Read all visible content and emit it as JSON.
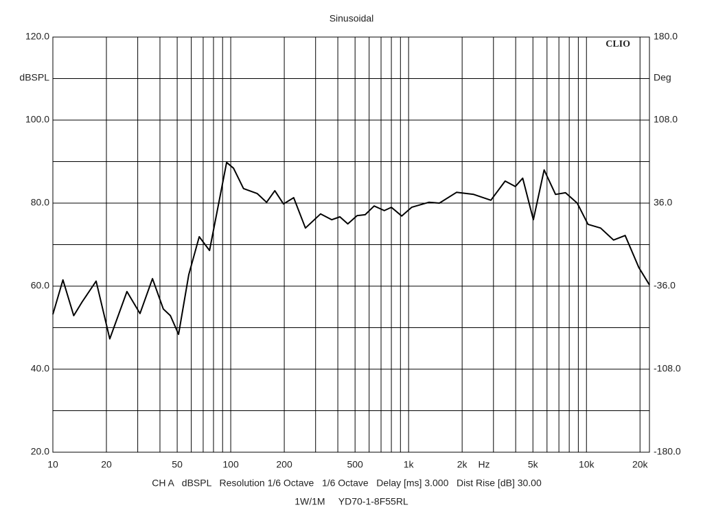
{
  "chart_data": {
    "type": "line",
    "title": "Sinusoidal",
    "ylabel": "dBSPL",
    "y2label": "Deg",
    "xunit": "Hz",
    "brand": "CLIO",
    "footer": [
      "CH A   dBSPL   Resolution 1/6 Octave   1/6 Octave   Delay [ms] 3.000   Dist Rise [dB] 30.00",
      "1W/1M     YD70-1-8F55RL"
    ],
    "xscale": "log",
    "xlim": [
      10,
      22600
    ],
    "xticks": [
      10,
      20,
      50,
      100,
      200,
      500,
      {
        "value": 1000,
        "label": "1k"
      },
      {
        "value": 2000,
        "label": "2k"
      },
      {
        "value": 5000,
        "label": "5k"
      },
      {
        "value": 10000,
        "label": "10k"
      },
      {
        "value": 20000,
        "label": "20k"
      }
    ],
    "xgrid": [
      30,
      40,
      60,
      70,
      80,
      90,
      300,
      400,
      600,
      700,
      800,
      900,
      3000,
      4000,
      6000,
      7000,
      8000,
      9000
    ],
    "ylim": [
      20,
      120
    ],
    "yticks": [
      {
        "value": 20,
        "label": "20.0"
      },
      {
        "value": 40,
        "label": "40.0"
      },
      {
        "value": 60,
        "label": "60.0"
      },
      {
        "value": 80,
        "label": "80.0"
      },
      {
        "value": 100,
        "label": "100.0"
      },
      {
        "value": 120,
        "label": "120.0"
      }
    ],
    "ygrid": [
      30,
      50,
      70,
      90,
      110
    ],
    "y2lim": [
      -180,
      180
    ],
    "y2ticks": [
      {
        "value": 180,
        "label": "180.0"
      },
      {
        "value": 108,
        "label": "108.0"
      },
      {
        "value": 36,
        "label": "36.0"
      },
      {
        "value": -36,
        "label": "-36.0"
      },
      {
        "value": -108,
        "label": "-108.0"
      },
      {
        "value": -180,
        "label": "-180.0"
      }
    ],
    "grid": true,
    "color": "#000000",
    "x": [
      10,
      11.4,
      13.1,
      14.6,
      17.5,
      20.9,
      26.1,
      30.9,
      36.3,
      41.8,
      45.8,
      50.9,
      58.1,
      66.5,
      76,
      85,
      94.8,
      103.7,
      118,
      141,
      159,
      177,
      198,
      226,
      263,
      320,
      370,
      411,
      455,
      513,
      570,
      640,
      730,
      800,
      915,
      1040,
      1300,
      1490,
      1860,
      2320,
      2900,
      3490,
      3980,
      4380,
      5030,
      5780,
      6700,
      7620,
      8870,
      10200,
      12000,
      14200,
      16500,
      19700,
      22600
    ],
    "values": [
      53.2,
      61.5,
      52.9,
      56.2,
      61.2,
      47.3,
      58.7,
      53.4,
      61.8,
      54.5,
      52.9,
      48.4,
      62.8,
      71.9,
      68.6,
      79.3,
      89.8,
      88.4,
      83.5,
      82.3,
      80.2,
      83,
      79.8,
      81.3,
      74,
      77.4,
      76,
      76.7,
      75,
      77,
      77.2,
      79.3,
      78.2,
      79,
      76.9,
      79,
      80.2,
      80,
      82.6,
      82.1,
      80.7,
      85.3,
      84,
      86,
      76,
      88,
      82.1,
      82.5,
      80,
      74.9,
      74,
      71.1,
      72.2,
      64.5,
      60.3
    ]
  }
}
